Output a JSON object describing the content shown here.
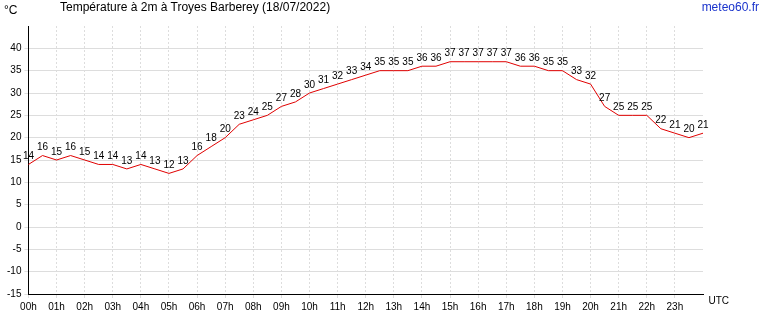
{
  "chart_data": {
    "type": "line",
    "title": "Température à 2m à Troyes Barberey (18/07/2022)",
    "source": "meteo60.fr",
    "y_label": "°C",
    "x_label": "UTC",
    "categories": [
      "00h",
      null,
      "01h",
      null,
      "02h",
      null,
      "03h",
      null,
      "04h",
      null,
      "05h",
      null,
      "06h",
      null,
      "07h",
      null,
      "08h",
      null,
      "09h",
      null,
      "10h",
      null,
      "11h",
      null,
      "12h",
      null,
      "13h",
      null,
      "14h",
      null,
      "15h",
      null,
      "16h",
      null,
      "17h",
      null,
      "18h",
      null,
      "19h",
      null,
      "20h",
      null,
      "21h",
      null,
      "22h",
      null,
      "23h",
      null,
      null
    ],
    "values": [
      14,
      16,
      15,
      16,
      15,
      14,
      14,
      13,
      14,
      13,
      12,
      13,
      16,
      18,
      20,
      23,
      24,
      25,
      27,
      28,
      30,
      31,
      32,
      33,
      34,
      35,
      35,
      35,
      36,
      36,
      37,
      37,
      37,
      37,
      37,
      36,
      36,
      35,
      35,
      33,
      32,
      27,
      25,
      25,
      25,
      22,
      21,
      20,
      21
    ],
    "color": "#e00000",
    "ylim": [
      -15,
      45
    ],
    "yticks": [
      -15,
      -10,
      -5,
      0,
      5,
      10,
      15,
      20,
      25,
      30,
      35,
      40
    ],
    "grid": true,
    "data_labels": true
  }
}
